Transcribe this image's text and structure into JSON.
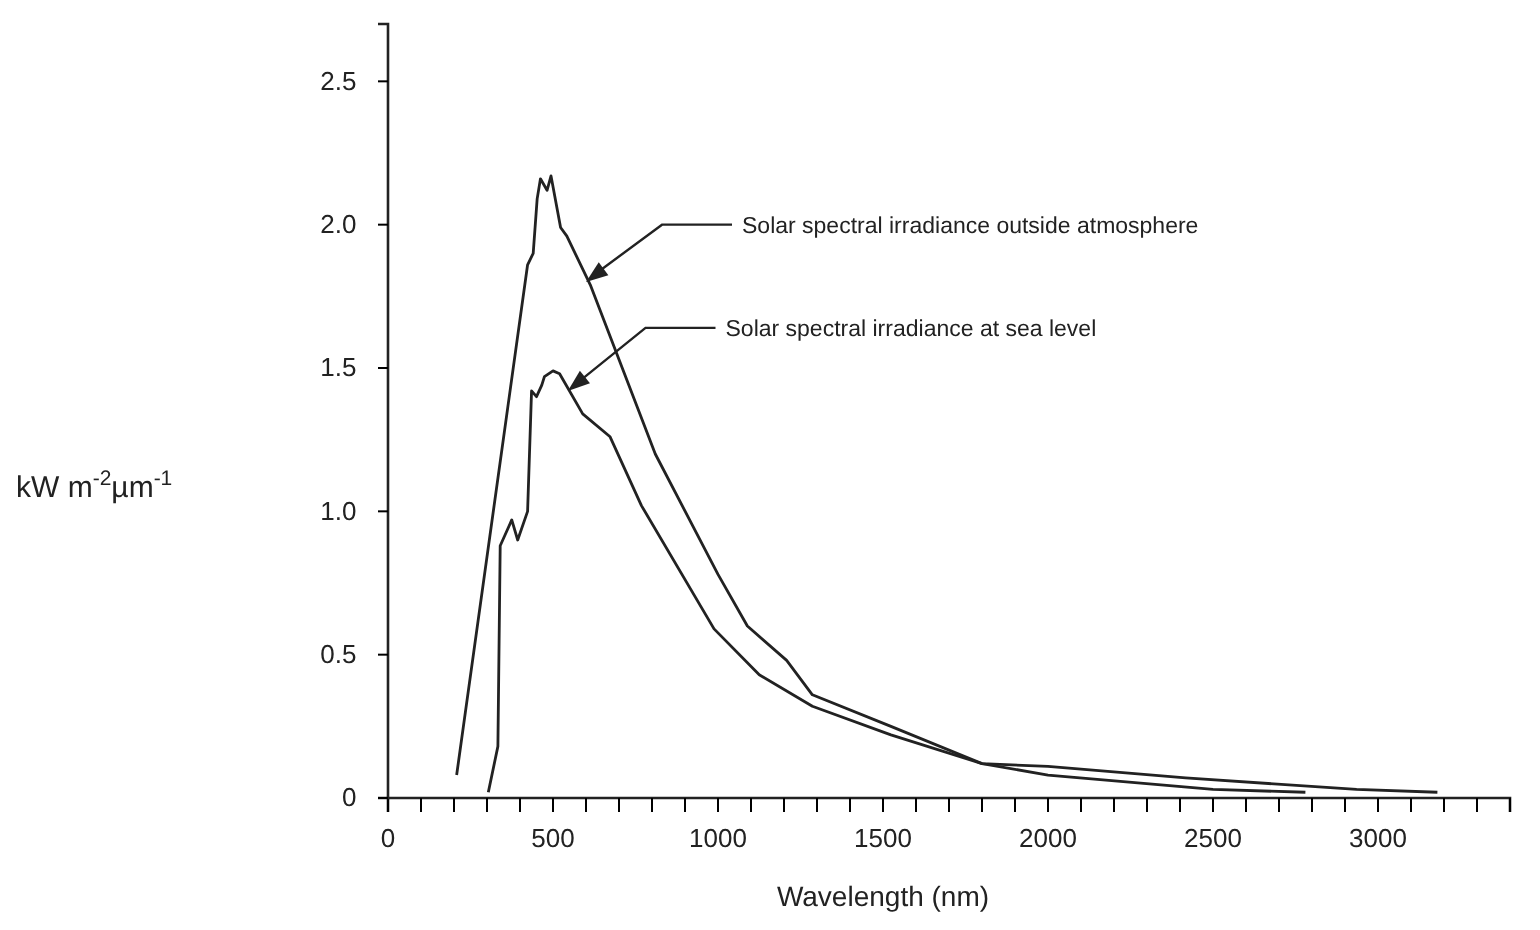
{
  "chart_data": {
    "type": "line",
    "xlabel": "Wavelength (nm)",
    "ylabel": "kW m$^{-2}$µm$^{-1}$",
    "xlim": [
      0,
      3400
    ],
    "ylim": [
      0,
      2.7
    ],
    "xticks": [
      0,
      {
        "value": 100,
        "label": null
      },
      {
        "value": 200,
        "label": null
      },
      {
        "value": 300,
        "label": null
      },
      {
        "value": 400,
        "label": null
      },
      500,
      {
        "value": 600,
        "label": null
      },
      {
        "value": 700,
        "label": null
      },
      {
        "value": 800,
        "label": null
      },
      {
        "value": 900,
        "label": null
      },
      1000,
      {
        "value": 1100,
        "label": null
      },
      {
        "value": 1200,
        "label": null
      },
      {
        "value": 1300,
        "label": null
      },
      {
        "value": 1400,
        "label": null
      },
      1500,
      {
        "value": 1600,
        "label": null
      },
      {
        "value": 1700,
        "label": null
      },
      {
        "value": 1800,
        "label": null
      },
      {
        "value": 1900,
        "label": null
      },
      2000,
      {
        "value": 2100,
        "label": null
      },
      {
        "value": 2200,
        "label": null
      },
      {
        "value": 2300,
        "label": null
      },
      {
        "value": 2400,
        "label": null
      },
      2500,
      {
        "value": 2600,
        "label": null
      },
      {
        "value": 2700,
        "label": null
      },
      {
        "value": 2800,
        "label": null
      },
      {
        "value": 2900,
        "label": null
      },
      3000,
      {
        "value": 3100,
        "label": null
      },
      {
        "value": 3200,
        "label": null
      },
      {
        "value": 3300,
        "label": null
      },
      {
        "value": 3400,
        "label": null
      }
    ],
    "yticks": [
      0,
      0.5,
      {
        "value": 1,
        "label": "1.0"
      },
      1.5,
      {
        "value": 2,
        "label": "2.0"
      },
      2.5
    ],
    "grid": false,
    "marker": "none",
    "line_style": "solid",
    "series": [
      {
        "color": "#222222",
        "x": [
          208,
          423,
          440,
          452,
          462,
          482,
          494,
          523,
          542,
          613,
          810,
          1000,
          1089,
          1208,
          1286,
          1524,
          1800,
          2000,
          2417,
          2935,
          3180
        ],
        "values": [
          0.08,
          1.86,
          1.9,
          2.09,
          2.16,
          2.12,
          2.17,
          1.99,
          1.96,
          1.79,
          1.2,
          0.78,
          0.6,
          0.48,
          0.36,
          0.25,
          0.12,
          0.11,
          0.07,
          0.03,
          0.02
        ]
      },
      {
        "color": "#222222",
        "x": [
          304,
          333,
          340,
          375,
          393,
          423,
          435,
          450,
          466,
          474,
          500,
          520,
          590,
          673,
          768,
          988,
          1125,
          1286,
          1524,
          1800,
          2000,
          2500,
          2780
        ],
        "values": [
          0.02,
          0.18,
          0.88,
          0.97,
          0.9,
          1.0,
          1.42,
          1.4,
          1.44,
          1.47,
          1.49,
          1.48,
          1.34,
          1.26,
          1.02,
          0.59,
          0.43,
          0.32,
          0.22,
          0.12,
          0.08,
          0.03,
          0.02
        ]
      }
    ],
    "annotations": [
      {
        "text": "Solar spectral irradiance outside atmosphere",
        "x": 600,
        "y": 1.8
      },
      {
        "text": "Solar spectral irradiance at sea level",
        "x": 545,
        "y": 1.42
      }
    ]
  }
}
